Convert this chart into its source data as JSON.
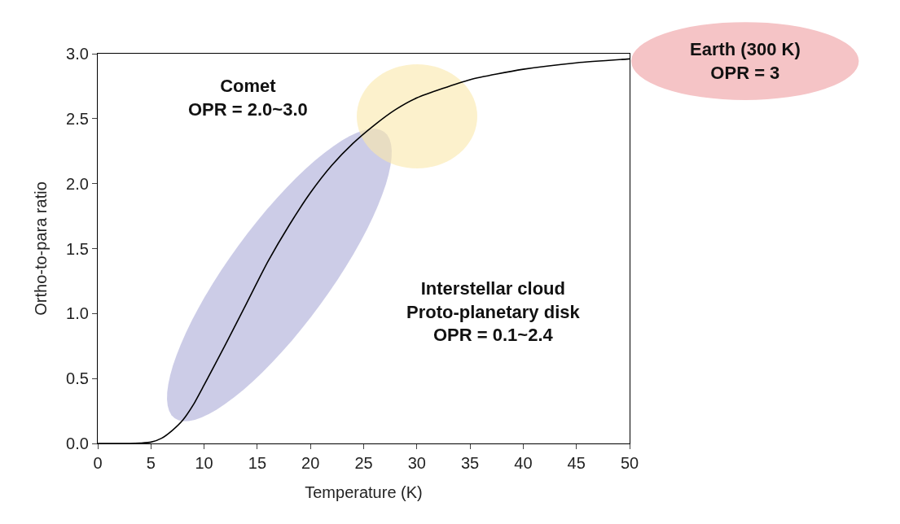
{
  "chart_data": {
    "type": "line",
    "xlabel": "Temperature (K)",
    "ylabel": "Ortho-to-para ratio",
    "x": [
      0,
      3,
      4,
      5,
      6,
      7,
      8,
      9,
      10,
      12,
      14,
      16,
      18,
      20,
      22,
      24,
      26,
      28,
      30,
      35,
      40,
      45,
      50
    ],
    "series": [
      {
        "color": "#000000",
        "values": [
          0,
          0,
          0.003,
          0.01,
          0.04,
          0.1,
          0.18,
          0.3,
          0.45,
          0.76,
          1.08,
          1.4,
          1.68,
          1.93,
          2.14,
          2.31,
          2.45,
          2.57,
          2.66,
          2.8,
          2.88,
          2.93,
          2.96
        ]
      }
    ],
    "xlim": [
      0,
      50
    ],
    "xticks": [
      0,
      5,
      10,
      15,
      20,
      25,
      30,
      35,
      40,
      45,
      50
    ],
    "ylim": [
      0,
      3
    ],
    "yticks": [
      {
        "value": 0,
        "label": "0.0"
      },
      {
        "value": 0.5,
        "label": "0.5"
      },
      {
        "value": 1,
        "label": "1.0"
      },
      {
        "value": 1.5,
        "label": "1.5"
      },
      {
        "value": 2,
        "label": "2.0"
      },
      {
        "value": 2.5,
        "label": "2.5"
      },
      {
        "value": 3,
        "label": "3.0"
      }
    ],
    "grid": false,
    "marker": "none",
    "line_style": "solid",
    "annotations": [
      "Comet\nOPR = 2.0~3.0",
      "Interstellar cloud\nProto-planetary disk\nOPR = 0.1~2.4",
      "Earth (300 K)\nOPR = 3"
    ]
  }
}
